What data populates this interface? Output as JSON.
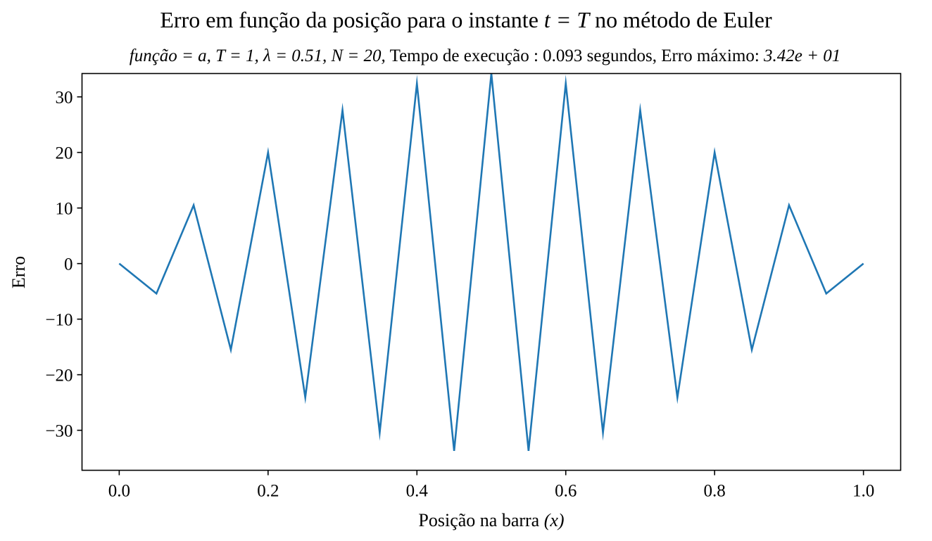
{
  "title": {
    "prefix": "Erro em função da posição para o instante ",
    "math": "t = T",
    "suffix": " no método de Euler"
  },
  "subtitle": {
    "funcao": "função = a,",
    "T": "T = 1,",
    "lambda": "λ = 0.51,",
    "N": "N = 20,",
    "tempo_label": "Tempo de execução :",
    "tempo_value": "0.093 segundos, Erro máximo:",
    "erro_value": "3.42e + 01"
  },
  "chart_data": {
    "type": "line",
    "xlabel_text": "Posição na barra ",
    "xlabel_math": "(x)",
    "ylabel": "Erro",
    "xlim": [
      -0.05,
      1.05
    ],
    "ylim": [
      -37.2,
      34.2
    ],
    "xticks": [
      0.0,
      0.2,
      0.4,
      0.6,
      0.8,
      1.0
    ],
    "xtick_labels": [
      "0.0",
      "0.2",
      "0.4",
      "0.6",
      "0.8",
      "1.0"
    ],
    "yticks": [
      -30,
      -20,
      -10,
      0,
      10,
      20,
      30
    ],
    "ytick_labels": [
      "−30",
      "−20",
      "−10",
      "0",
      "10",
      "20",
      "30"
    ],
    "grid": false,
    "series": [
      {
        "color": "#1f77b4",
        "x": [
          0.0,
          0.05,
          0.1,
          0.15,
          0.2,
          0.25,
          0.3,
          0.35,
          0.4,
          0.45,
          0.5,
          0.55,
          0.6,
          0.65,
          0.7,
          0.75,
          0.8,
          0.85,
          0.9,
          0.95,
          1.0
        ],
        "y": [
          0.0,
          -5.4,
          10.5,
          -15.5,
          20.0,
          -24.1,
          27.6,
          -30.4,
          32.4,
          -33.7,
          34.2,
          -33.7,
          32.4,
          -30.4,
          27.6,
          -24.1,
          20.0,
          -15.5,
          10.5,
          -5.4,
          0.0
        ]
      }
    ]
  }
}
